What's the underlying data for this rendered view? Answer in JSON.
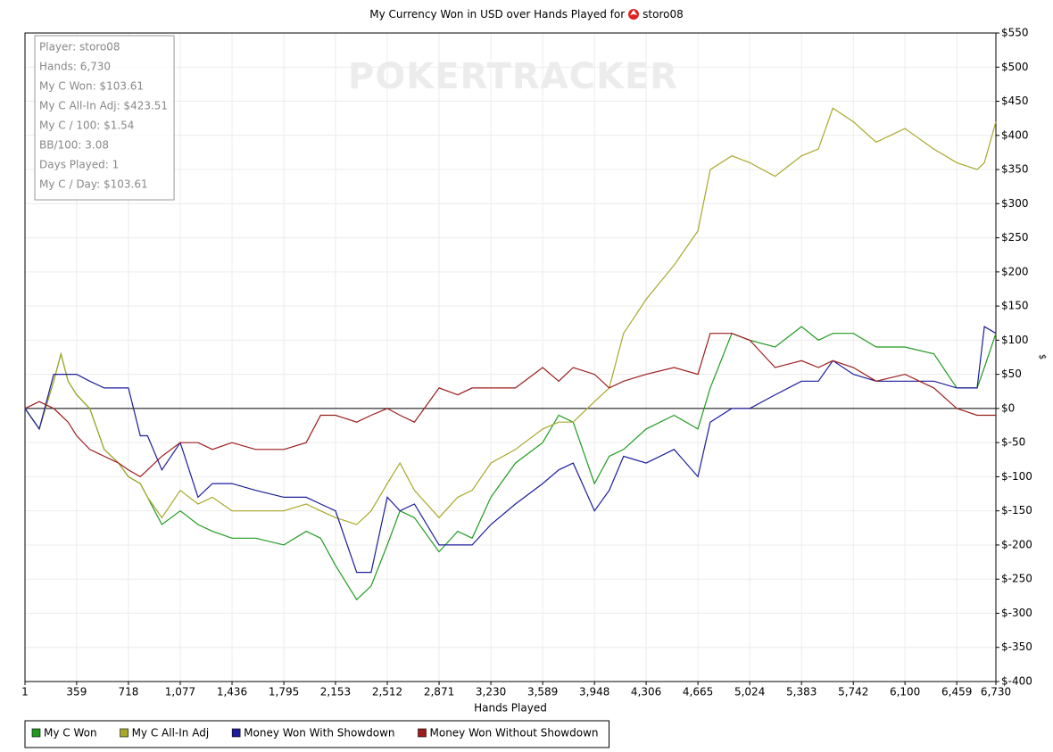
{
  "chart_data": {
    "type": "line",
    "title": "My Currency Won in USD over Hands Played for",
    "title_player": "storo08",
    "watermark": "POKERTRACKER",
    "x_label": "Hands Played",
    "y_label": "$",
    "info_box": [
      "Player: storo08",
      "Hands: 6,730",
      "My C Won: $103.61",
      "My C All-In Adj: $423.51",
      "My C / 100: $1.54",
      "BB/100: 3.08",
      "Days Played: 1",
      "My C / Day: $103.61"
    ],
    "grid": true,
    "legend": "bottom-left",
    "xlim": [
      1,
      6730
    ],
    "xticks": [
      1,
      359,
      718,
      {
        "value": 1077,
        "label": "1,077"
      },
      {
        "value": 1436,
        "label": "1,436"
      },
      {
        "value": 1795,
        "label": "1,795"
      },
      {
        "value": 2153,
        "label": "2,153"
      },
      {
        "value": 2512,
        "label": "2,512"
      },
      {
        "value": 2871,
        "label": "2,871"
      },
      {
        "value": 3230,
        "label": "3,230"
      },
      {
        "value": 3589,
        "label": "3,589"
      },
      {
        "value": 3948,
        "label": "3,948"
      },
      {
        "value": 4306,
        "label": "4,306"
      },
      {
        "value": 4665,
        "label": "4,665"
      },
      {
        "value": 5024,
        "label": "5,024"
      },
      {
        "value": 5383,
        "label": "5,383"
      },
      {
        "value": 5742,
        "label": "5,742"
      },
      {
        "value": 6100,
        "label": "6,100"
      },
      {
        "value": 6459,
        "label": "6,459"
      },
      {
        "value": 6730,
        "label": "6,730"
      }
    ],
    "ylim": [
      -400,
      550
    ],
    "yticks": [
      {
        "value": 550,
        "label": "$550"
      },
      {
        "value": 500,
        "label": "$500"
      },
      {
        "value": 450,
        "label": "$450"
      },
      {
        "value": 400,
        "label": "$400"
      },
      {
        "value": 350,
        "label": "$350"
      },
      {
        "value": 300,
        "label": "$300"
      },
      {
        "value": 250,
        "label": "$250"
      },
      {
        "value": 200,
        "label": "$200"
      },
      {
        "value": 150,
        "label": "$150"
      },
      {
        "value": 100,
        "label": "$100"
      },
      {
        "value": 50,
        "label": "$50"
      },
      {
        "value": 0,
        "label": "$0"
      },
      {
        "value": -50,
        "label": "$-50"
      },
      {
        "value": -100,
        "label": "$-100"
      },
      {
        "value": -150,
        "label": "$-150"
      },
      {
        "value": -200,
        "label": "$-200"
      },
      {
        "value": -250,
        "label": "$-250"
      },
      {
        "value": -300,
        "label": "$-300"
      },
      {
        "value": -350,
        "label": "$-350"
      },
      {
        "value": -400,
        "label": "$-400"
      }
    ],
    "x": [
      1,
      100,
      200,
      250,
      300,
      359,
      450,
      550,
      650,
      718,
      800,
      850,
      950,
      1077,
      1200,
      1300,
      1436,
      1600,
      1795,
      1950,
      2050,
      2153,
      2300,
      2400,
      2512,
      2600,
      2700,
      2871,
      3000,
      3100,
      3230,
      3400,
      3589,
      3700,
      3800,
      3948,
      4050,
      4150,
      4306,
      4500,
      4665,
      4750,
      4900,
      5024,
      5200,
      5383,
      5500,
      5600,
      5742,
      5900,
      6100,
      6300,
      6459,
      6600,
      6650,
      6730
    ],
    "series": [
      {
        "name": "My C Won",
        "color": "#1f9a1f",
        "values": [
          0,
          -30,
          40,
          80,
          40,
          20,
          0,
          -60,
          -80,
          -100,
          -110,
          -130,
          -170,
          -150,
          -170,
          -180,
          -190,
          -190,
          -200,
          -180,
          -190,
          -230,
          -280,
          -260,
          -200,
          -150,
          -160,
          -210,
          -180,
          -190,
          -130,
          -80,
          -50,
          -10,
          -20,
          -110,
          -70,
          -60,
          -30,
          -10,
          -30,
          30,
          110,
          100,
          90,
          120,
          100,
          110,
          110,
          90,
          90,
          80,
          30,
          30,
          60,
          110
        ]
      },
      {
        "name": "My C All-In Adj",
        "color": "#a8a82a",
        "values": [
          0,
          -30,
          40,
          80,
          40,
          20,
          0,
          -60,
          -80,
          -100,
          -110,
          -130,
          -160,
          -120,
          -140,
          -130,
          -150,
          -150,
          -150,
          -140,
          -150,
          -160,
          -170,
          -150,
          -110,
          -80,
          -120,
          -160,
          -130,
          -120,
          -80,
          -60,
          -30,
          -20,
          -20,
          10,
          30,
          110,
          160,
          210,
          260,
          350,
          370,
          360,
          340,
          370,
          380,
          440,
          420,
          390,
          410,
          380,
          360,
          350,
          360,
          420
        ]
      },
      {
        "name": "Money Won With Showdown",
        "color": "#1c1c9c",
        "values": [
          0,
          -30,
          50,
          50,
          50,
          50,
          40,
          30,
          30,
          30,
          -40,
          -40,
          -90,
          -50,
          -130,
          -110,
          -110,
          -120,
          -130,
          -130,
          -140,
          -150,
          -240,
          -240,
          -130,
          -150,
          -140,
          -200,
          -200,
          -200,
          -170,
          -140,
          -110,
          -90,
          -80,
          -150,
          -120,
          -70,
          -80,
          -60,
          -100,
          -20,
          0,
          0,
          20,
          40,
          40,
          70,
          50,
          40,
          40,
          40,
          30,
          30,
          120,
          110
        ]
      },
      {
        "name": "Money Won Without Showdown",
        "color": "#9c1c1c",
        "values": [
          0,
          10,
          0,
          -10,
          -20,
          -40,
          -60,
          -70,
          -80,
          -90,
          -100,
          -90,
          -70,
          -50,
          -50,
          -60,
          -50,
          -60,
          -60,
          -50,
          -10,
          -10,
          -20,
          -10,
          0,
          -10,
          -20,
          30,
          20,
          30,
          30,
          30,
          60,
          40,
          60,
          50,
          30,
          40,
          50,
          60,
          50,
          110,
          110,
          100,
          60,
          70,
          60,
          70,
          60,
          40,
          50,
          30,
          0,
          -10,
          -10,
          -10
        ]
      }
    ]
  }
}
